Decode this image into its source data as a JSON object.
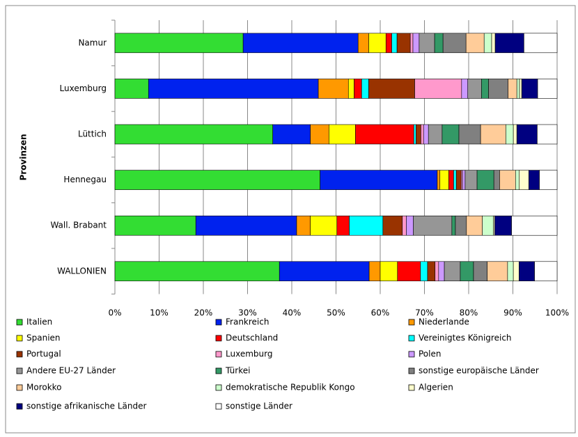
{
  "chart_data": {
    "type": "bar_stacked_horizontal_100",
    "y_axis_label": "Provinzen",
    "categories": [
      "Namur",
      "Luxemburg",
      "Lüttich",
      "Hennegau",
      "Wall. Brabant",
      "WALLONIEN"
    ],
    "xlim": [
      0,
      100
    ],
    "xticks": [
      {
        "value": 0,
        "label": "0%"
      },
      {
        "value": 10,
        "label": "10%"
      },
      {
        "value": 20,
        "label": "20%"
      },
      {
        "value": 30,
        "label": "30%"
      },
      {
        "value": 40,
        "label": "40%"
      },
      {
        "value": 50,
        "label": "50%"
      },
      {
        "value": 60,
        "label": "60%"
      },
      {
        "value": 70,
        "label": "70%"
      },
      {
        "value": 80,
        "label": "80%"
      },
      {
        "value": 90,
        "label": "90%"
      },
      {
        "value": 100,
        "label": "100%"
      }
    ],
    "grid": true,
    "series": [
      {
        "name": "Italien",
        "color": "#33dd33",
        "values": [
          29,
          7.6,
          35.7,
          46.4,
          18.3,
          37.2
        ]
      },
      {
        "name": "Frankreich",
        "color": "#0022ee",
        "values": [
          26,
          38.4,
          8.5,
          26.5,
          22.8,
          20.3
        ]
      },
      {
        "name": "Niederlande",
        "color": "#ff9900",
        "values": [
          2.4,
          6.8,
          4.2,
          0.6,
          3.1,
          2.5
        ]
      },
      {
        "name": "Spanien",
        "color": "#ffff00",
        "values": [
          3.9,
          1.3,
          6.0,
          2.0,
          6.0,
          3.9
        ]
      },
      {
        "name": "Deutschland",
        "color": "#ff0000",
        "values": [
          1.3,
          1.7,
          13.2,
          1.1,
          2.8,
          5.2
        ]
      },
      {
        "name": "Vereinigtes Königreich",
        "color": "#00ffff",
        "values": [
          1.2,
          1.6,
          0.5,
          0.6,
          7.6,
          1.6
        ]
      },
      {
        "name": "Portugal",
        "color": "#993300",
        "values": [
          3,
          10.4,
          1.1,
          1.1,
          4.4,
          1.7
        ]
      },
      {
        "name": "Luxemburg",
        "color": "#ff99cc",
        "values": [
          0.6,
          10.6,
          0.6,
          0.3,
          0.9,
          0.8
        ]
      },
      {
        "name": "Polen",
        "color": "#cc99ff",
        "values": [
          1.4,
          1.4,
          1.1,
          0.6,
          1.6,
          1.3
        ]
      },
      {
        "name": "Andere EU-27 Länder",
        "color": "#969696",
        "values": [
          3.5,
          3.1,
          3.1,
          2.7,
          8.7,
          3.6
        ]
      },
      {
        "name": "Türkei",
        "color": "#339966",
        "values": [
          1.9,
          1.6,
          3.8,
          3.8,
          0.8,
          3.0
        ]
      },
      {
        "name": "sonstige europäische Länder",
        "color": "#808080",
        "values": [
          5.2,
          4.4,
          4.9,
          1.3,
          2.5,
          3.1
        ]
      },
      {
        "name": "Morokko",
        "color": "#ffcc99",
        "values": [
          4.1,
          2.0,
          5.7,
          3.6,
          3.6,
          4.6
        ]
      },
      {
        "name": "demokratische Republik Kongo",
        "color": "#ccffcc",
        "values": [
          1.7,
          0.6,
          1.7,
          0.8,
          2.5,
          1.3
        ]
      },
      {
        "name": "Algerien",
        "color": "#ffffcc",
        "values": [
          0.8,
          0.5,
          0.8,
          2.2,
          0.3,
          1.3
        ]
      },
      {
        "name": "sonstige afrikanische Länder",
        "color": "#000080",
        "values": [
          6.5,
          3.6,
          4.6,
          2.4,
          3.8,
          3.5
        ]
      },
      {
        "name": "sonstige Länder",
        "color": "#ffffff",
        "values": [
          7.5,
          4.4,
          4.5,
          4.0,
          10.3,
          5.1
        ]
      }
    ]
  }
}
